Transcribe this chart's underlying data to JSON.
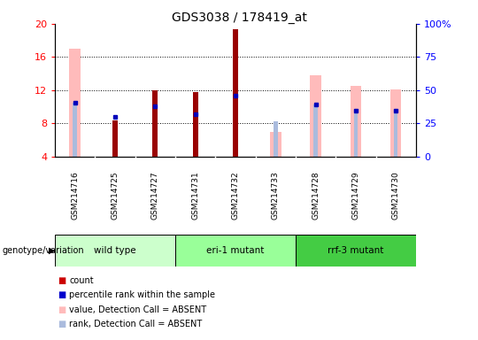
{
  "title": "GDS3038 / 178419_at",
  "samples": [
    "GSM214716",
    "GSM214725",
    "GSM214727",
    "GSM214731",
    "GSM214732",
    "GSM214733",
    "GSM214728",
    "GSM214729",
    "GSM214730"
  ],
  "count_values": [
    null,
    8.3,
    12.0,
    11.8,
    19.3,
    null,
    null,
    null,
    null
  ],
  "rank_values": [
    10.5,
    8.8,
    10.0,
    9.1,
    11.3,
    null,
    10.3,
    9.5,
    9.5
  ],
  "absent_value": [
    17.0,
    null,
    null,
    null,
    null,
    6.9,
    13.8,
    12.5,
    12.1
  ],
  "absent_rank": [
    10.5,
    null,
    null,
    null,
    null,
    8.2,
    10.3,
    9.5,
    9.5
  ],
  "ylim_left": [
    4,
    20
  ],
  "ylim_right": [
    0,
    100
  ],
  "yticks_left": [
    4,
    8,
    12,
    16,
    20
  ],
  "yticks_right": [
    0,
    25,
    50,
    75,
    100
  ],
  "ytick_right_labels": [
    "0",
    "25",
    "50",
    "75",
    "100%"
  ],
  "groups": [
    {
      "label": "wild type",
      "indices": [
        0,
        1,
        2
      ],
      "color": "#ccffcc"
    },
    {
      "label": "eri-1 mutant",
      "indices": [
        3,
        4,
        5
      ],
      "color": "#99ff99"
    },
    {
      "label": "rrf-3 mutant",
      "indices": [
        6,
        7,
        8
      ],
      "color": "#44cc44"
    }
  ],
  "color_count": "#990000",
  "color_rank": "#0000bb",
  "color_absent_value": "#ffbbbb",
  "color_absent_rank": "#aabbdd",
  "legend_items": [
    {
      "label": "count",
      "color": "#cc0000"
    },
    {
      "label": "percentile rank within the sample",
      "color": "#0000cc"
    },
    {
      "label": "value, Detection Call = ABSENT",
      "color": "#ffbbbb"
    },
    {
      "label": "rank, Detection Call = ABSENT",
      "color": "#aabbdd"
    }
  ],
  "bg_color": "#ffffff",
  "plot_bg": "#ffffff",
  "label_box_color": "#cccccc",
  "grid_color": "#000000"
}
